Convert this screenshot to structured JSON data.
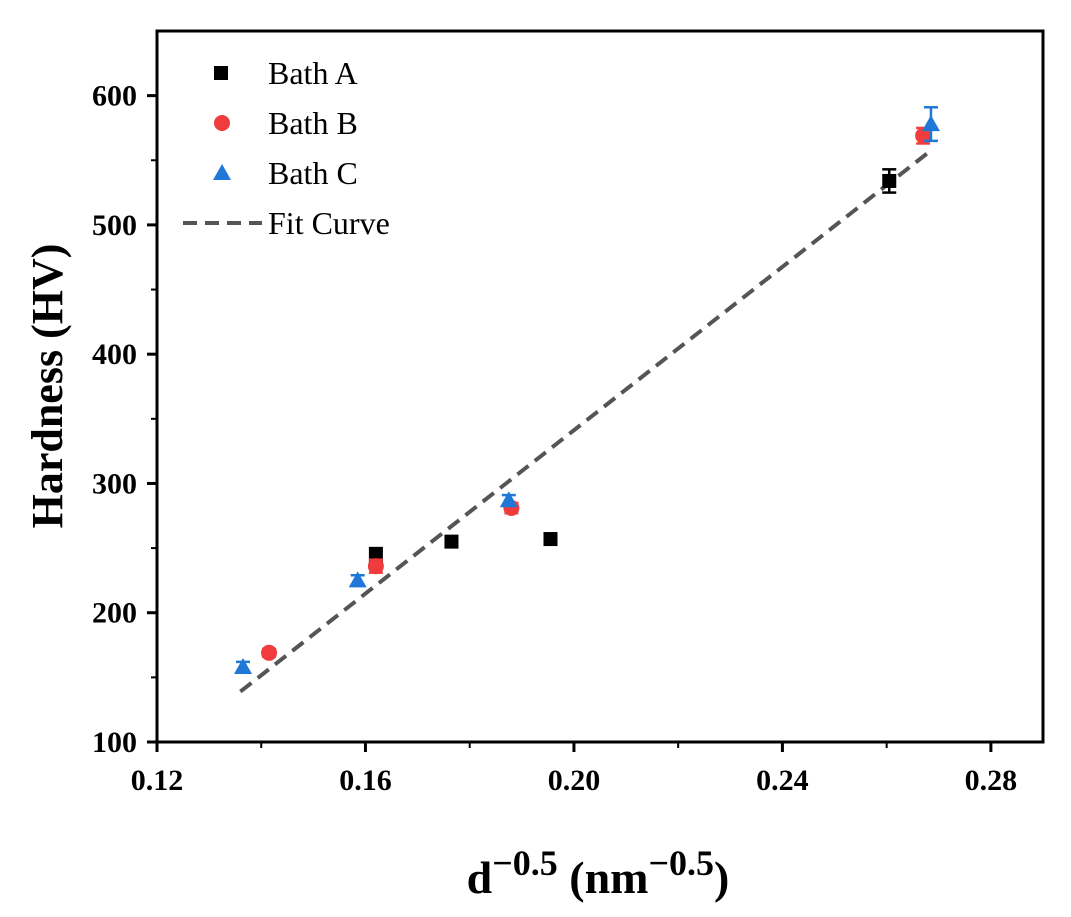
{
  "chart_data": {
    "type": "scatter",
    "title": "",
    "xlabel": {
      "base": "d",
      "base_exp": "−0.5",
      "unit_open": " (nm",
      "unit_exp": "−0.5",
      "unit_close": ")"
    },
    "ylabel": "Hardness (HV)",
    "xlim": [
      0.12,
      0.29
    ],
    "ylim": [
      100,
      650
    ],
    "x_ticks": [
      0.12,
      0.16,
      0.2,
      0.24,
      0.28
    ],
    "x_tick_labels": [
      "0.12",
      "0.16",
      "0.20",
      "0.24",
      "0.28"
    ],
    "y_ticks": [
      100,
      200,
      300,
      400,
      500,
      600
    ],
    "y_tick_labels": [
      "100",
      "200",
      "300",
      "400",
      "500",
      "600"
    ],
    "legend_position": "top-left",
    "series": [
      {
        "name": "Bath A",
        "marker": "square",
        "color": "#000000",
        "points": [
          {
            "x": 0.162,
            "y": 244,
            "err": 6
          },
          {
            "x": 0.1765,
            "y": 255,
            "err": 3
          },
          {
            "x": 0.1955,
            "y": 257,
            "err": 3
          },
          {
            "x": 0.2605,
            "y": 534,
            "err": 9
          }
        ]
      },
      {
        "name": "Bath B",
        "marker": "circle",
        "color": "#f03c3c",
        "points": [
          {
            "x": 0.1415,
            "y": 169,
            "err": 3
          },
          {
            "x": 0.162,
            "y": 236,
            "err": 5
          },
          {
            "x": 0.188,
            "y": 281,
            "err": 4
          },
          {
            "x": 0.267,
            "y": 569,
            "err": 6
          }
        ]
      },
      {
        "name": "Bath C",
        "marker": "triangle",
        "color": "#1f78d8",
        "points": [
          {
            "x": 0.1365,
            "y": 158,
            "err": 4
          },
          {
            "x": 0.1585,
            "y": 225,
            "err": 4
          },
          {
            "x": 0.1875,
            "y": 287,
            "err": 4
          },
          {
            "x": 0.2685,
            "y": 578,
            "err": 13
          }
        ]
      },
      {
        "name": "Fit Curve",
        "type": "line",
        "style": "dashed",
        "color": "#555555",
        "points": [
          {
            "x": 0.136,
            "y": 139
          },
          {
            "x": 0.268,
            "y": 556
          }
        ]
      }
    ]
  }
}
